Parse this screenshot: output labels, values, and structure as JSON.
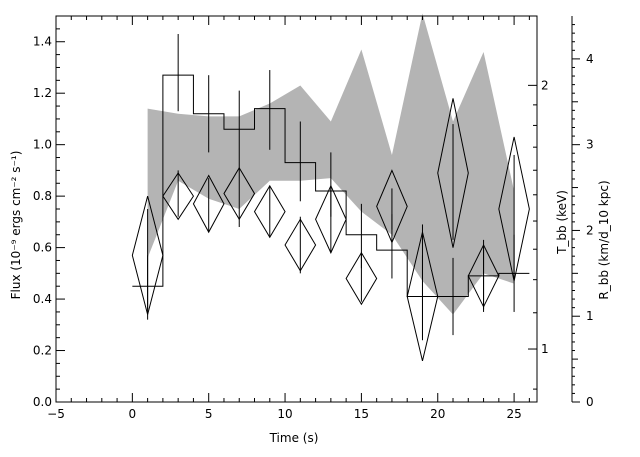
{
  "chart_data": {
    "type": "line",
    "title": "",
    "xlabel": "Time (s)",
    "xlim": [
      -5,
      26.5
    ],
    "x_ticks": [
      -5,
      0,
      5,
      10,
      15,
      20,
      25
    ],
    "y_left": {
      "label": "Flux (10⁻⁹ ergs cm⁻² s⁻¹)",
      "lim": [
        0,
        1.5
      ],
      "ticks": [
        0.0,
        0.2,
        0.4,
        0.6,
        0.8,
        1.0,
        1.2,
        1.4
      ],
      "tick_labels": [
        "0.0",
        "0.2",
        "0.4",
        "0.6",
        "0.8",
        "1.0",
        "1.2",
        "1.4"
      ]
    },
    "y_mid": {
      "label": "T_bb (keV)",
      "ticks": [
        1,
        2
      ],
      "tick_labels": [
        "1",
        "2"
      ],
      "note": "log scale, value range about 0.87 to 2.4 keV"
    },
    "y_right": {
      "label": "R_bb (km/d_10 kpc)",
      "lim": [
        0,
        4.5
      ],
      "ticks": [
        0,
        1,
        2,
        3,
        4
      ],
      "tick_labels": [
        "0",
        "1",
        "2",
        "3",
        "4"
      ]
    },
    "grid": false,
    "legend": "none",
    "series": [
      {
        "kind": "step-histogram",
        "axis": "flux",
        "bin_width": 2,
        "x": [
          1,
          3,
          5,
          7,
          9,
          11,
          13,
          15,
          17,
          19,
          21,
          23,
          25
        ],
        "values": [
          0.45,
          1.27,
          1.12,
          1.06,
          1.14,
          0.93,
          0.82,
          0.65,
          0.59,
          0.41,
          0.41,
          0.49,
          0.5
        ],
        "err_low": [
          0.36,
          1.13,
          0.97,
          0.91,
          0.98,
          0.78,
          0.72,
          0.52,
          0.48,
          0.25,
          0.26,
          0.36,
          0.35
        ],
        "err_high": [
          0.57,
          1.43,
          1.27,
          1.21,
          1.29,
          1.09,
          0.97,
          0.77,
          0.73,
          0.57,
          0.56,
          0.63,
          0.65
        ]
      },
      {
        "kind": "band",
        "axis": "flux",
        "color": "#b4b4b4",
        "x": [
          1,
          3,
          5,
          7,
          9,
          11,
          13,
          15,
          17,
          19,
          21,
          23,
          25
        ],
        "low": [
          0.56,
          0.86,
          0.79,
          0.75,
          0.86,
          0.86,
          0.87,
          0.74,
          0.65,
          0.47,
          0.34,
          0.5,
          0.46
        ],
        "high": [
          1.14,
          1.12,
          1.11,
          1.11,
          1.16,
          1.23,
          1.09,
          1.37,
          0.96,
          1.51,
          1.09,
          1.36,
          0.82
        ]
      },
      {
        "kind": "diamond",
        "axis": "flux",
        "x": [
          1,
          3,
          5,
          7,
          9,
          11,
          13,
          15,
          17,
          19,
          21,
          23,
          25
        ],
        "values": [
          0.57,
          0.8,
          0.77,
          0.81,
          0.74,
          0.61,
          0.71,
          0.48,
          0.76,
          0.41,
          0.89,
          0.49,
          0.75
        ],
        "half_height": [
          0.23,
          0.09,
          0.11,
          0.1,
          0.1,
          0.1,
          0.13,
          0.1,
          0.14,
          0.25,
          0.29,
          0.12,
          0.28
        ],
        "half_width": [
          1,
          1,
          1,
          1,
          1,
          1,
          1,
          1,
          1,
          1,
          1,
          1,
          1
        ]
      },
      {
        "kind": "error-bars",
        "axis": "flux",
        "x": [
          1,
          3,
          5,
          7,
          9,
          11,
          13,
          15,
          17,
          19,
          21,
          23,
          25
        ],
        "low": [
          0.32,
          0.72,
          0.66,
          0.68,
          0.64,
          0.5,
          0.58,
          0.39,
          0.67,
          0.24,
          0.63,
          0.35,
          0.48
        ],
        "high": [
          0.75,
          0.9,
          0.87,
          0.91,
          0.84,
          0.72,
          0.83,
          0.58,
          0.83,
          0.69,
          1.08,
          0.59,
          0.96
        ]
      }
    ]
  }
}
